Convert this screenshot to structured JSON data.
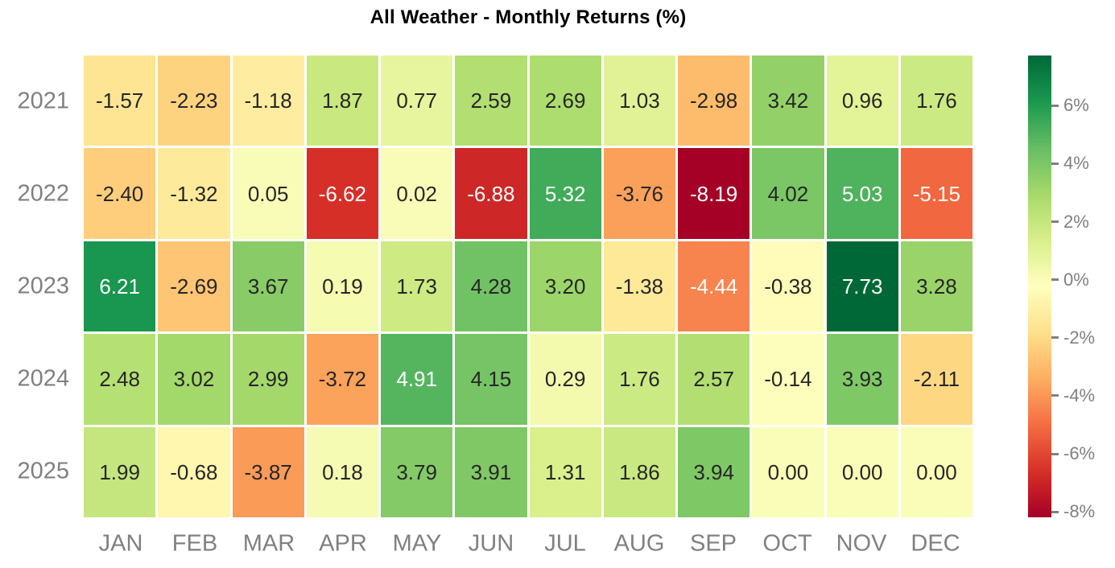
{
  "title": "All Weather - Monthly Returns (%)",
  "chart_data": {
    "type": "heatmap",
    "title": "All Weather - Monthly Returns (%)",
    "categories": [
      "JAN",
      "FEB",
      "MAR",
      "APR",
      "MAY",
      "JUN",
      "JUL",
      "AUG",
      "SEP",
      "OCT",
      "NOV",
      "DEC"
    ],
    "rows": [
      "2021",
      "2022",
      "2023",
      "2024",
      "2025"
    ],
    "series": [
      {
        "name": "2021",
        "values": [
          -1.57,
          -2.23,
          -1.18,
          1.87,
          0.77,
          2.59,
          2.69,
          1.03,
          -2.98,
          3.42,
          0.96,
          1.76
        ]
      },
      {
        "name": "2022",
        "values": [
          -2.4,
          -1.32,
          0.05,
          -6.62,
          0.02,
          -6.88,
          5.32,
          -3.76,
          -8.19,
          4.02,
          5.03,
          -5.15
        ]
      },
      {
        "name": "2023",
        "values": [
          6.21,
          -2.69,
          3.67,
          0.19,
          1.73,
          4.28,
          3.2,
          -1.38,
          -4.44,
          -0.38,
          7.73,
          3.28
        ]
      },
      {
        "name": "2024",
        "values": [
          2.48,
          3.02,
          2.99,
          -3.72,
          4.91,
          4.15,
          0.29,
          1.76,
          2.57,
          -0.14,
          3.93,
          -2.11
        ]
      },
      {
        "name": "2025",
        "values": [
          1.99,
          -0.68,
          -3.87,
          0.18,
          3.79,
          3.91,
          1.31,
          1.86,
          3.94,
          0.0,
          0.0,
          0.0
        ]
      }
    ],
    "annotation_decimals": 2,
    "colormap": {
      "name": "RdYlGn",
      "vmin": -8.19,
      "vmax": 7.73,
      "stops": [
        "#a50026",
        "#d73027",
        "#f46d43",
        "#fdae61",
        "#fee08b",
        "#ffffbf",
        "#d9ef8b",
        "#a6d96a",
        "#66bd63",
        "#1a9850",
        "#006837"
      ]
    },
    "colorbar": {
      "position": "right",
      "ticks": [
        {
          "value": 6,
          "label": "6%"
        },
        {
          "value": 4,
          "label": "4%"
        },
        {
          "value": 2,
          "label": "2%"
        },
        {
          "value": 0,
          "label": "0%"
        },
        {
          "value": -2,
          "label": "-2%"
        },
        {
          "value": -4,
          "label": "-4%"
        },
        {
          "value": -6,
          "label": "-6%"
        },
        {
          "value": -8,
          "label": "-8%"
        }
      ]
    },
    "colors": {
      "background": "#ffffff",
      "title": "#000000",
      "axis_labels": "#808080",
      "annotation_dark": "#262626",
      "annotation_light": "#ffffff",
      "cell_gap": "#ffffff"
    },
    "grid": false,
    "legend": false
  }
}
